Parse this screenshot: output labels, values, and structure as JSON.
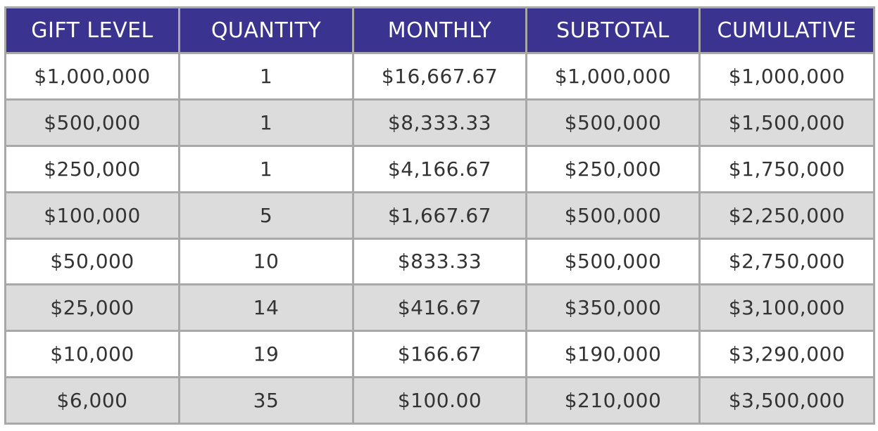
{
  "table": {
    "headers": [
      "GIFT LEVEL",
      "QUANTITY",
      "MONTHLY",
      "SUBTOTAL",
      "CUMULATIVE"
    ],
    "rows": [
      [
        "$1,000,000",
        "1",
        "$16,667.67",
        "$1,000,000",
        "$1,000,000"
      ],
      [
        "$500,000",
        "1",
        "$8,333.33",
        "$500,000",
        "$1,500,000"
      ],
      [
        "$250,000",
        "1",
        "$4,166.67",
        "$250,000",
        "$1,750,000"
      ],
      [
        "$100,000",
        "5",
        "$1,667.67",
        "$500,000",
        "$2,250,000"
      ],
      [
        "$50,000",
        "10",
        "$833.33",
        "$500,000",
        "$2,750,000"
      ],
      [
        "$25,000",
        "14",
        "$416.67",
        "$350,000",
        "$3,100,000"
      ],
      [
        "$10,000",
        "19",
        "$166.67",
        "$190,000",
        "$3,290,000"
      ],
      [
        "$6,000",
        "35",
        "$100.00",
        "$210,000",
        "$3,500,000"
      ]
    ]
  },
  "colors": {
    "header_background": "#3a3490",
    "header_text": "#ffffff",
    "row_light": "#ffffff",
    "row_shaded": "#dcdcdc",
    "grid_lines": "#a8a8a8",
    "cell_text": "#333333"
  }
}
